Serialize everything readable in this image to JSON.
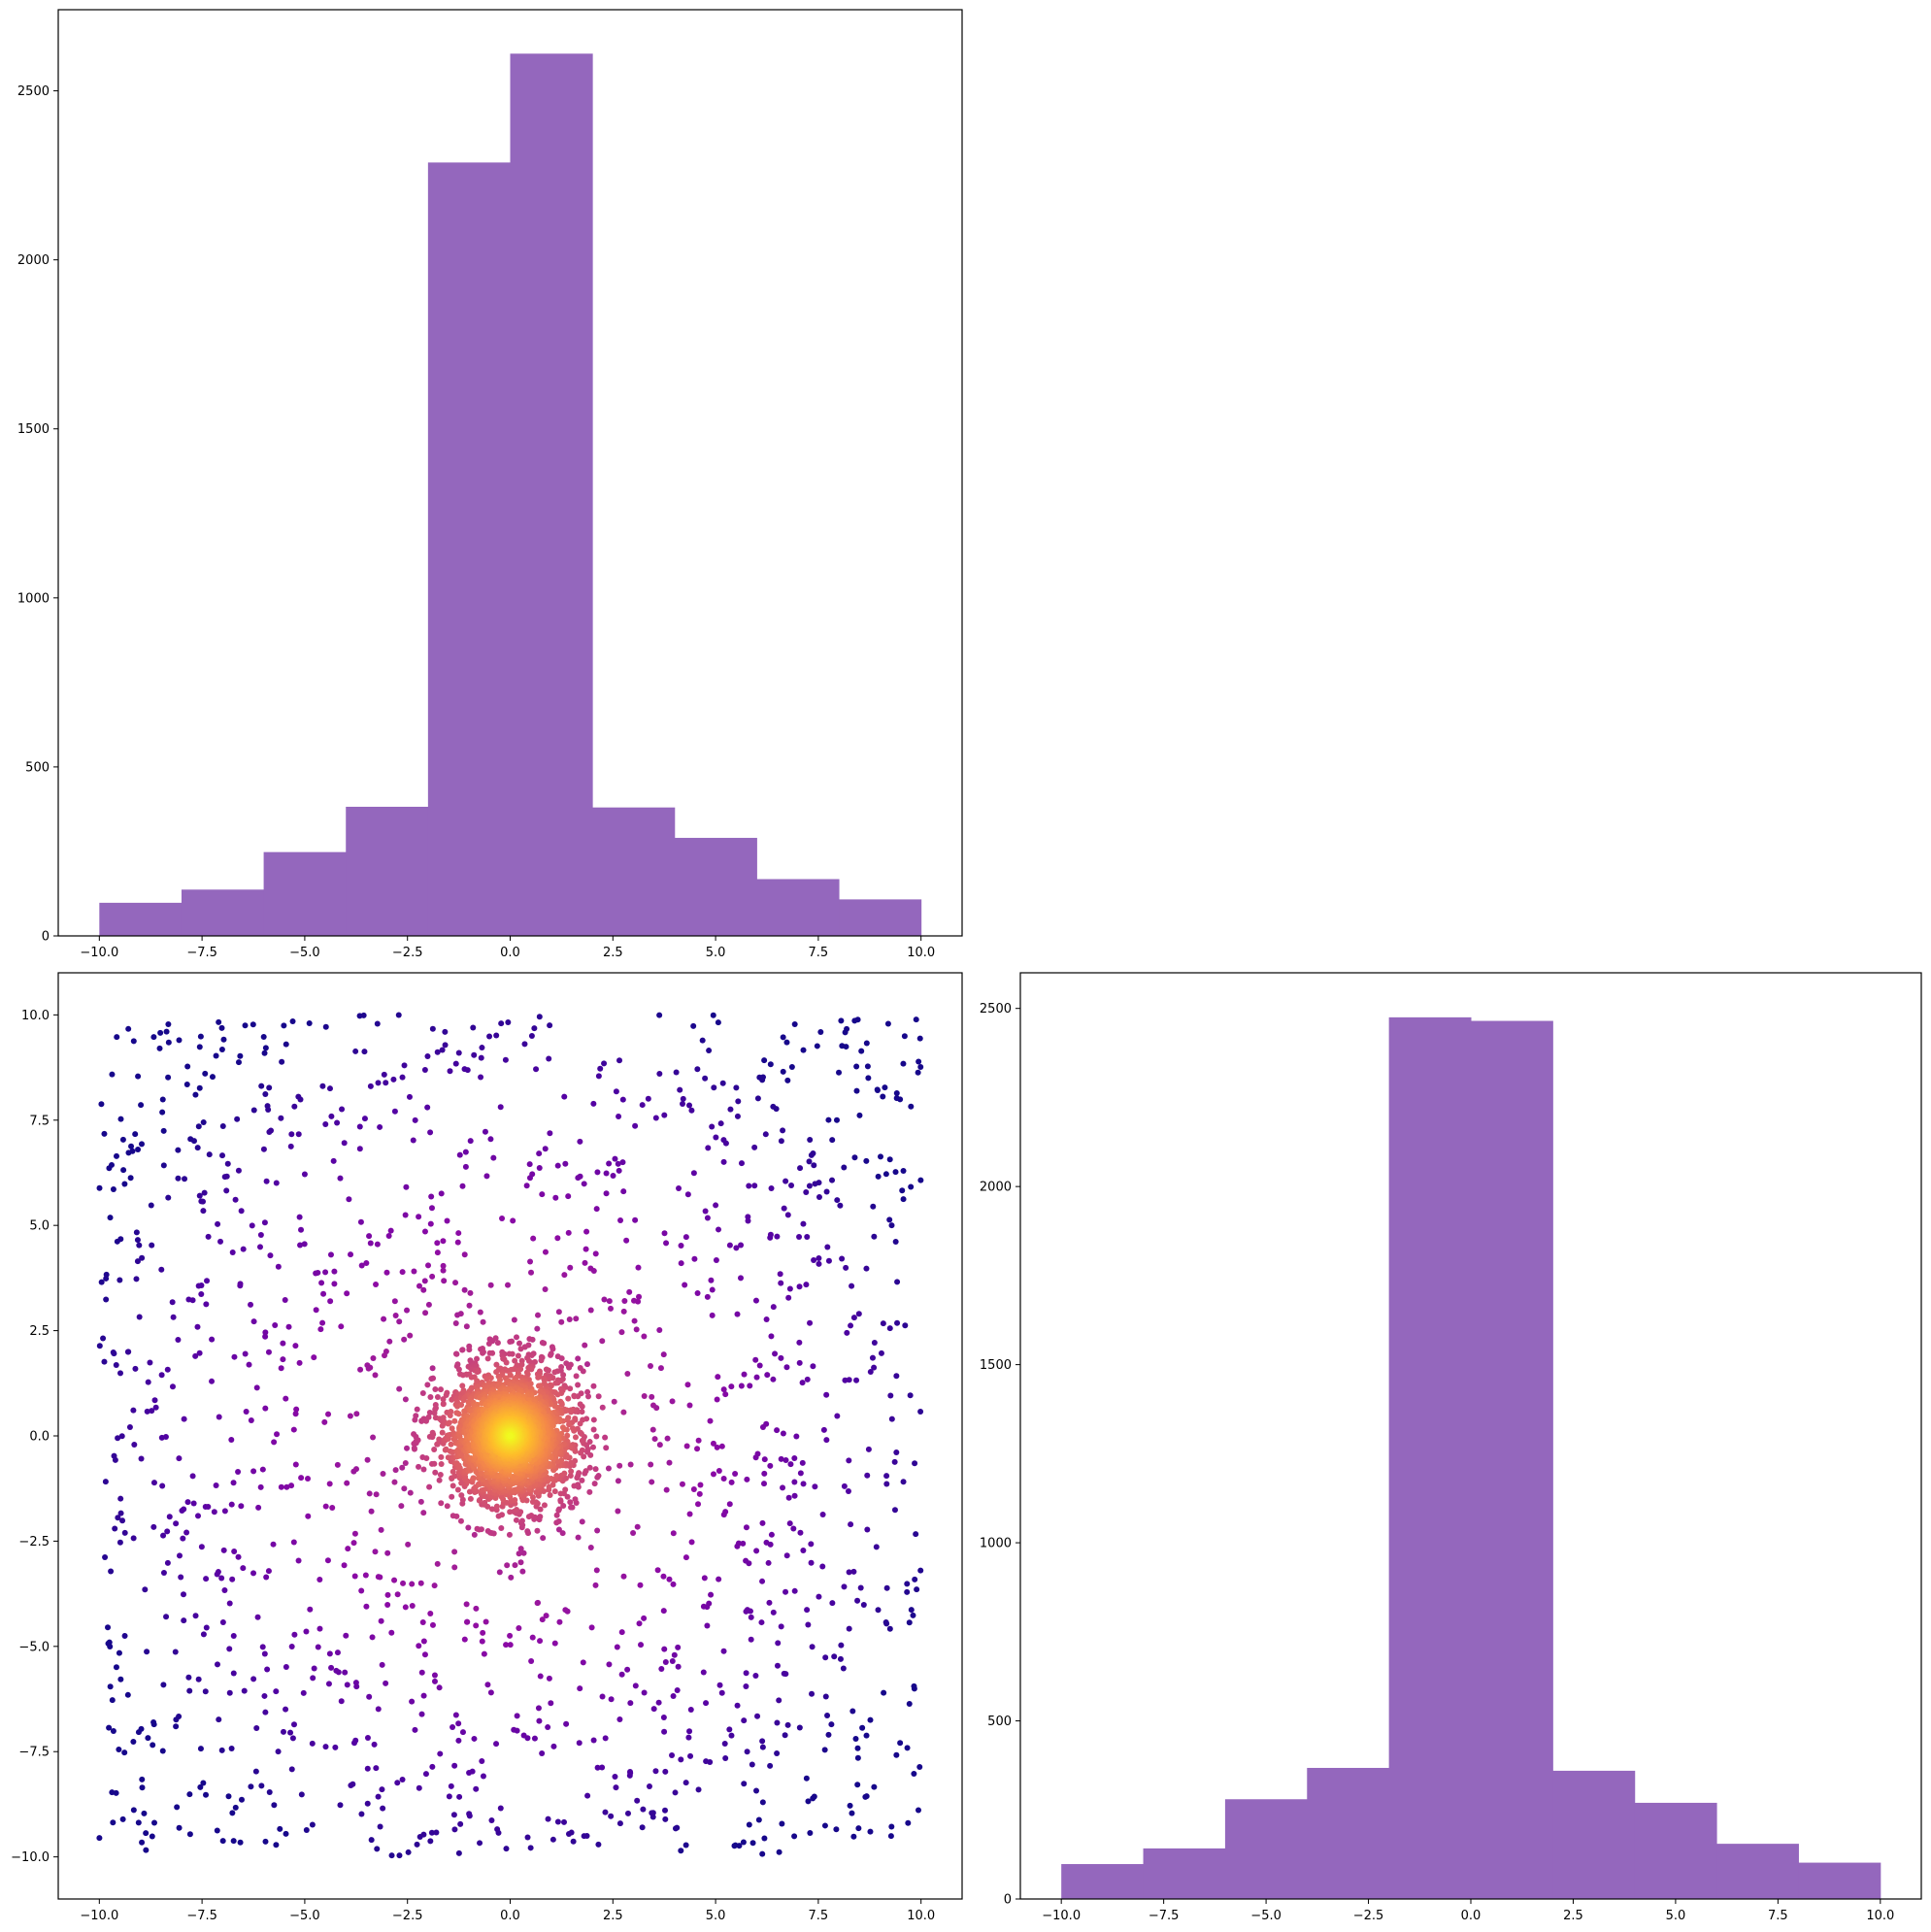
{
  "chart_data": [
    {
      "type": "bar",
      "panel": "top-left",
      "description_of_content": "",
      "bin_edges": [
        -10,
        -8,
        -6,
        -4,
        -2,
        0,
        2,
        4,
        6,
        8,
        10
      ],
      "values": [
        98,
        137,
        248,
        382,
        2288,
        2610,
        380,
        290,
        168,
        108
      ],
      "xticks": [
        "−10.0",
        "−7.5",
        "−5.0",
        "−2.5",
        "0.0",
        "2.5",
        "5.0",
        "7.5",
        "10.0"
      ],
      "yticks": [
        "0",
        "500",
        "1000",
        "1500",
        "2000",
        "2500"
      ],
      "xlim": [
        -11,
        11
      ],
      "ylim": [
        0,
        2740
      ],
      "color": "#9467bd",
      "title": "",
      "xlabel": "",
      "ylabel": "",
      "grid": false
    },
    {
      "type": "scatter",
      "panel": "bottom-left",
      "colormap": "plasma",
      "xticks": [
        "−10.0",
        "−7.5",
        "−5.0",
        "−2.5",
        "0.0",
        "2.5",
        "5.0",
        "7.5",
        "10.0"
      ],
      "yticks": [
        "−10.0",
        "−7.5",
        "−5.0",
        "−2.5",
        "0.0",
        "2.5",
        "5.0",
        "7.5",
        "10.0"
      ],
      "xlim": [
        -11,
        11
      ],
      "ylim": [
        -11,
        11
      ],
      "point_count": 10000,
      "title": "",
      "xlabel": "",
      "ylabel": "",
      "grid": false
    },
    {
      "type": "bar",
      "panel": "bottom-right",
      "bin_edges": [
        -10,
        -8,
        -6,
        -4,
        -2,
        0,
        2,
        4,
        6,
        8,
        10
      ],
      "values": [
        98,
        142,
        280,
        368,
        2475,
        2465,
        360,
        270,
        155,
        102
      ],
      "xticks": [
        "−10.0",
        "−7.5",
        "−5.0",
        "−2.5",
        "0.0",
        "2.5",
        "5.0",
        "7.5",
        "10.0"
      ],
      "yticks": [
        "0",
        "500",
        "1000",
        "1500",
        "2000",
        "2500"
      ],
      "xlim": [
        -11,
        11
      ],
      "ylim": [
        0,
        2600
      ],
      "color": "#9467bd",
      "title": "",
      "xlabel": "",
      "ylabel": "",
      "grid": false
    }
  ]
}
